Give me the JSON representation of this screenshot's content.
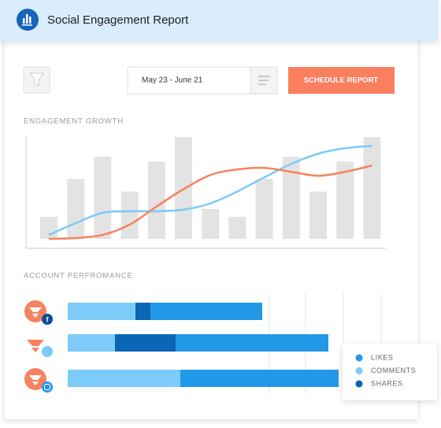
{
  "header": {
    "title": "Social Engagement Report"
  },
  "toolbar": {
    "date_range": "May 23 - June 21",
    "button": "SCHEDULE REPORT"
  },
  "engagement": {
    "title": "ENGAGEMENT GROWTH",
    "chart_data": {
      "type": "bar-line",
      "ylim": [
        0,
        140
      ],
      "bar_color": "#e3e3e3",
      "values": [
        28,
        76,
        104,
        60,
        98,
        129,
        38,
        28,
        76,
        104,
        60,
        98,
        129
      ],
      "series": [
        {
          "color": "#7ccbf6",
          "values": [
            5,
            20,
            33,
            35,
            35,
            37,
            45,
            60,
            78,
            95,
            108,
            115,
            118
          ]
        },
        {
          "color": "#f7825f",
          "values": [
            0,
            1,
            5,
            18,
            41,
            63,
            81,
            88,
            90,
            85,
            80,
            85,
            93
          ]
        }
      ]
    }
  },
  "accounts": {
    "title": "ACCOUNT PERFROMANCE",
    "chart_data": {
      "type": "stacked-barh",
      "xlim": [
        0,
        400
      ],
      "xticks": [
        256,
        302,
        350,
        398
      ],
      "series": [
        {
          "name": "COMMENTS",
          "color": "#7ccbf8",
          "values": [
            86,
            60,
            143
          ]
        },
        {
          "name": "SHARES",
          "color": "#0b65b5",
          "values": [
            19,
            77,
            0
          ]
        },
        {
          "name": "LIKES",
          "color": "#2299e8",
          "values": [
            142,
            194,
            201
          ]
        }
      ],
      "legend_order": [
        2,
        0,
        1
      ]
    }
  }
}
